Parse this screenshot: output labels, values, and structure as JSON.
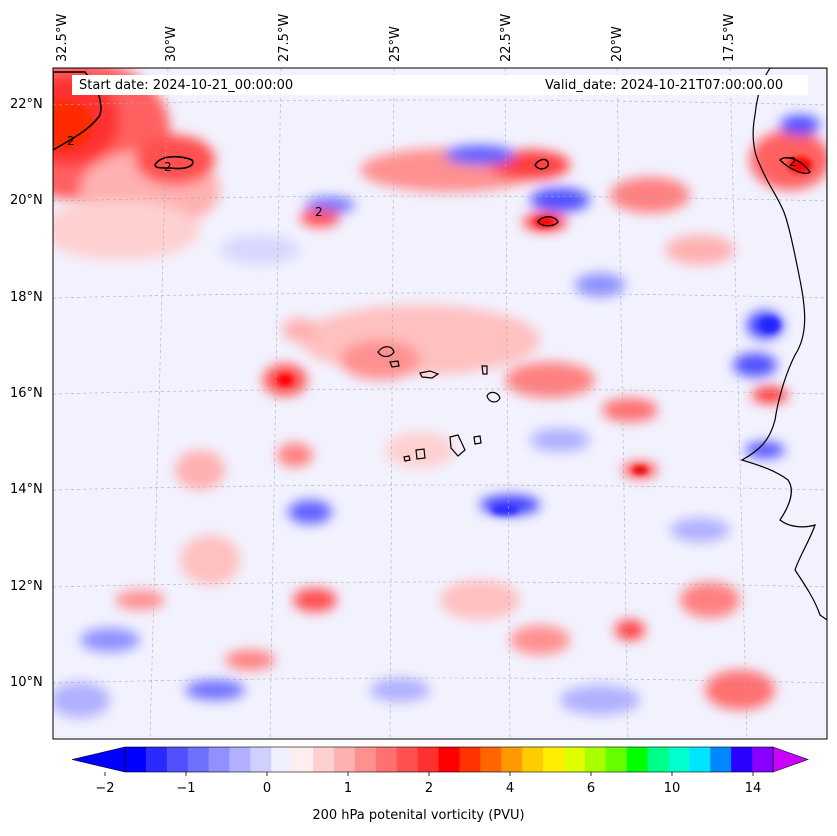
{
  "map": {
    "start_date": "Start date: 2024-10-21_00:00:00",
    "valid_date": "Valid_date: 2024-10-21T07:00:00.00",
    "lon_labels": [
      "32.5°W",
      "30°W",
      "27.5°W",
      "25°W",
      "22.5°W",
      "20°W",
      "17.5°W"
    ],
    "lat_labels": [
      "22°N",
      "20°N",
      "18°N",
      "16°N",
      "14°N",
      "12°N",
      "10°N"
    ],
    "contour_label": "2",
    "colorbar": {
      "title": "200 hPa potenital vorticity (PVU)",
      "tick_labels": [
        "−2",
        "−1",
        "0",
        "1",
        "2",
        "4",
        "6",
        "10",
        "14"
      ],
      "colors": [
        "#0000ff",
        "#2a2aff",
        "#5050ff",
        "#7070ff",
        "#9090ff",
        "#b0b0ff",
        "#d0d0ff",
        "#f0f0ff",
        "#ffeeee",
        "#ffd0d0",
        "#ffb0b0",
        "#ff9090",
        "#ff7070",
        "#ff5050",
        "#ff3030",
        "#ff0000",
        "#ff3300",
        "#ff6600",
        "#ff9900",
        "#ffcc00",
        "#ffee00",
        "#ddff00",
        "#aaff00",
        "#66ff00",
        "#00ff00",
        "#00ff88",
        "#00ffcc",
        "#00e5ff",
        "#0088ff",
        "#2a00ff",
        "#8800ff"
      ],
      "under_color": "#0000ff",
      "over_color": "#cc00ff"
    }
  }
}
